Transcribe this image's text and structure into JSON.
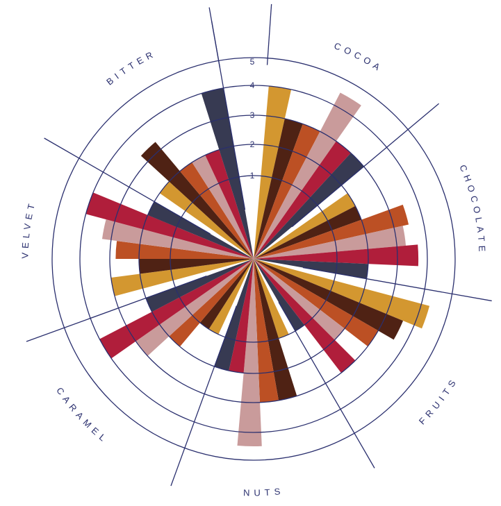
{
  "chart_data": {
    "type": "radial-bar",
    "rlim": [
      0,
      5
    ],
    "ticks": [
      "1",
      "2",
      "3",
      "4",
      "5"
    ],
    "palette": [
      "#d39730",
      "#4f2214",
      "#bc5024",
      "#c99b9b",
      "#b01e3b",
      "#373a52"
    ],
    "categories": [
      {
        "name": "COCOA",
        "values": [
          4,
          3,
          3,
          4.5,
          3,
          3
        ]
      },
      {
        "name": "CHOCOLATE",
        "values": [
          2,
          2,
          3.5,
          3.3,
          3.7,
          2
        ]
      },
      {
        "name": "FRUITS",
        "values": [
          4.3,
          3.6,
          3,
          2,
          3,
          1
        ]
      },
      {
        "name": "NUTS",
        "values": [
          1,
          3,
          3,
          4.5,
          2,
          2
        ]
      },
      {
        "name": "CARAMEL",
        "values": [
          1,
          1,
          2,
          3,
          4,
          2
        ]
      },
      {
        "name": "VELVET",
        "values": [
          3,
          2,
          2.8,
          3.3,
          4,
          2
        ]
      },
      {
        "name": "BITTER",
        "values": [
          2,
          3.3,
          2,
          2,
          2,
          4
        ]
      }
    ]
  }
}
